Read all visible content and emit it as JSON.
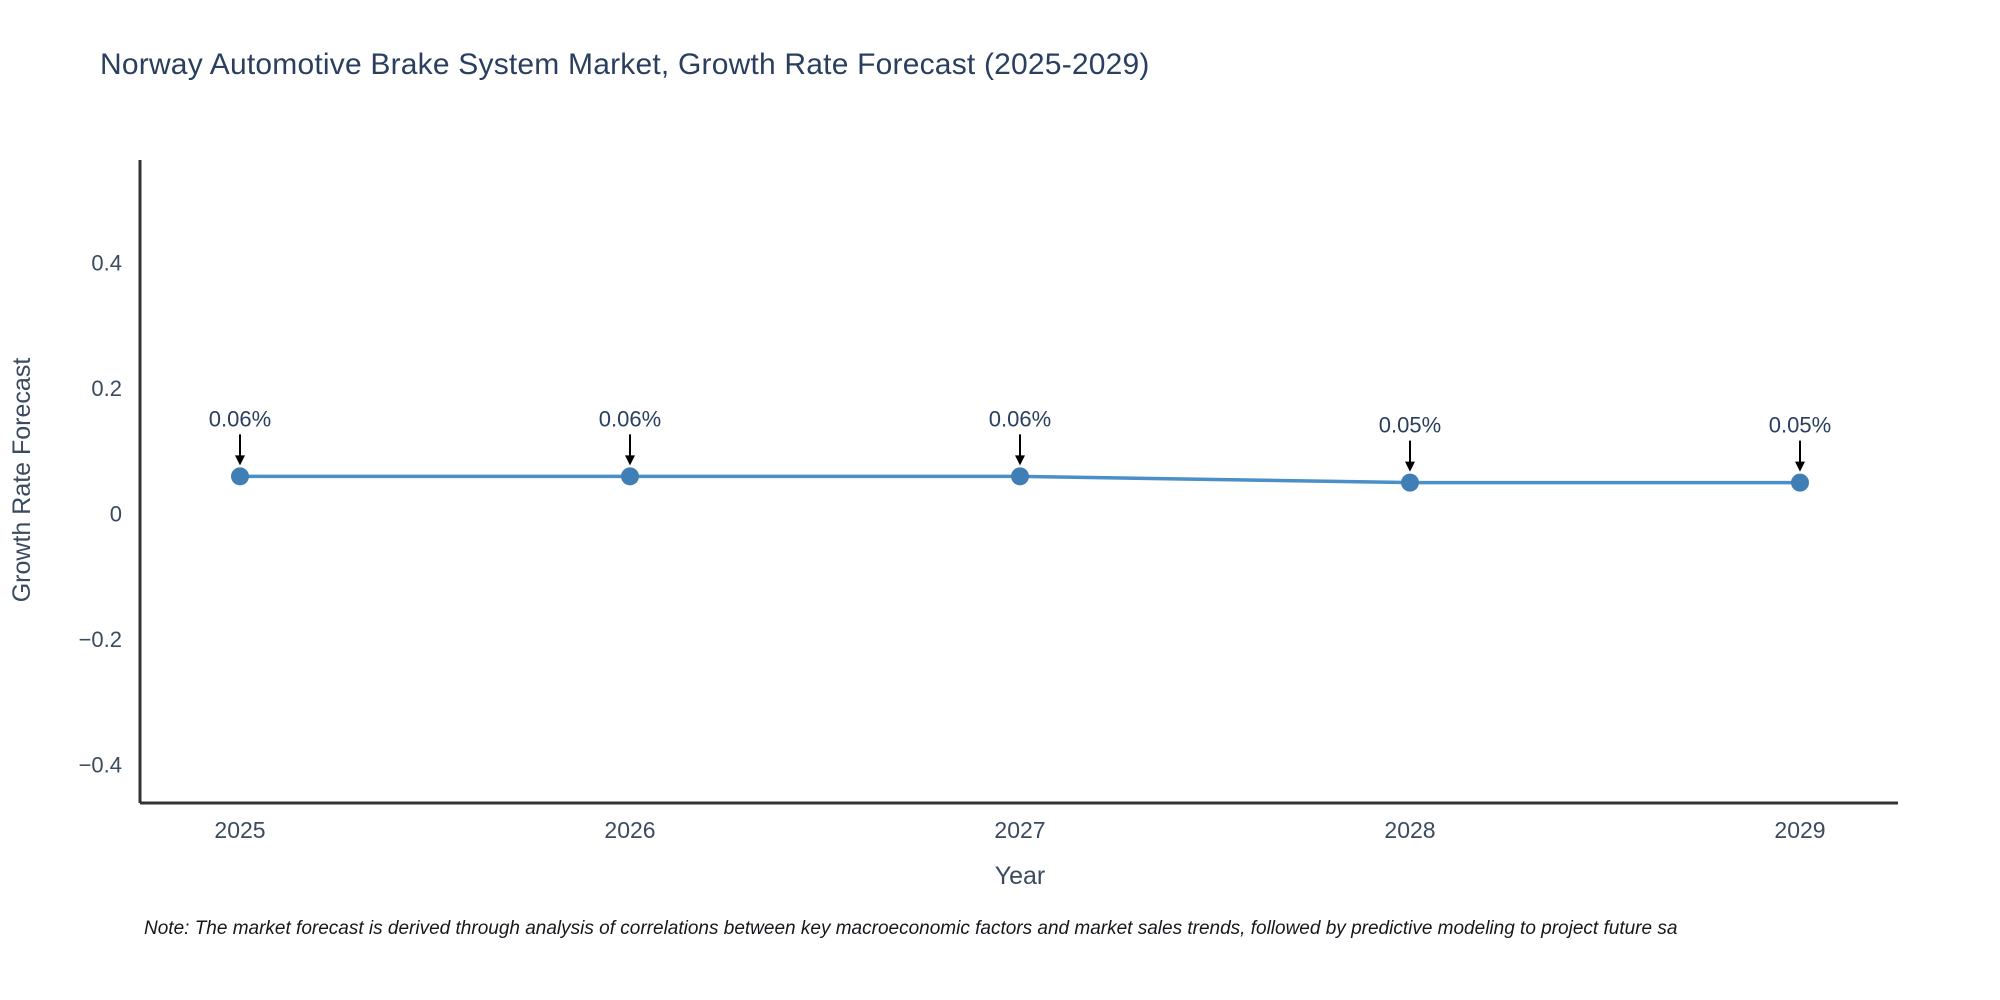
{
  "title": "Norway Automotive Brake System Market, Growth Rate Forecast (2025-2029)",
  "note": "Note: The market forecast is derived through analysis of correlations between key macroeconomic factors and market sales trends, followed by predictive modeling to project future sa",
  "chart_data": {
    "type": "line",
    "title": "Norway Automotive Brake System Market, Growth Rate Forecast (2025-2029)",
    "xlabel": "Year",
    "ylabel": "Growth Rate Forecast",
    "x": [
      2025,
      2026,
      2027,
      2028,
      2029
    ],
    "xtick_labels": [
      "2025",
      "2026",
      "2027",
      "2028",
      "2029"
    ],
    "series": [
      {
        "name": "Growth Rate Forecast",
        "values": [
          0.06,
          0.06,
          0.06,
          0.05,
          0.05
        ]
      }
    ],
    "annotations": [
      "0.06%",
      "0.06%",
      "0.06%",
      "0.05%",
      "0.05%"
    ],
    "yticks": [
      0.4,
      0.2,
      0,
      -0.2,
      -0.4
    ],
    "ytick_labels": [
      "0.4",
      "0.2",
      "0",
      "−0.2",
      "−0.4"
    ],
    "ylim": [
      -0.46,
      0.565
    ],
    "grid": false,
    "legend": false,
    "colors": {
      "line": "#4a8fc7",
      "marker": "#3f7fb5",
      "title": "#2a3f5f",
      "tick": "#3b4a5f",
      "axis": "#333333",
      "annotation": "#2a3f5f",
      "arrow": "#000000"
    }
  }
}
